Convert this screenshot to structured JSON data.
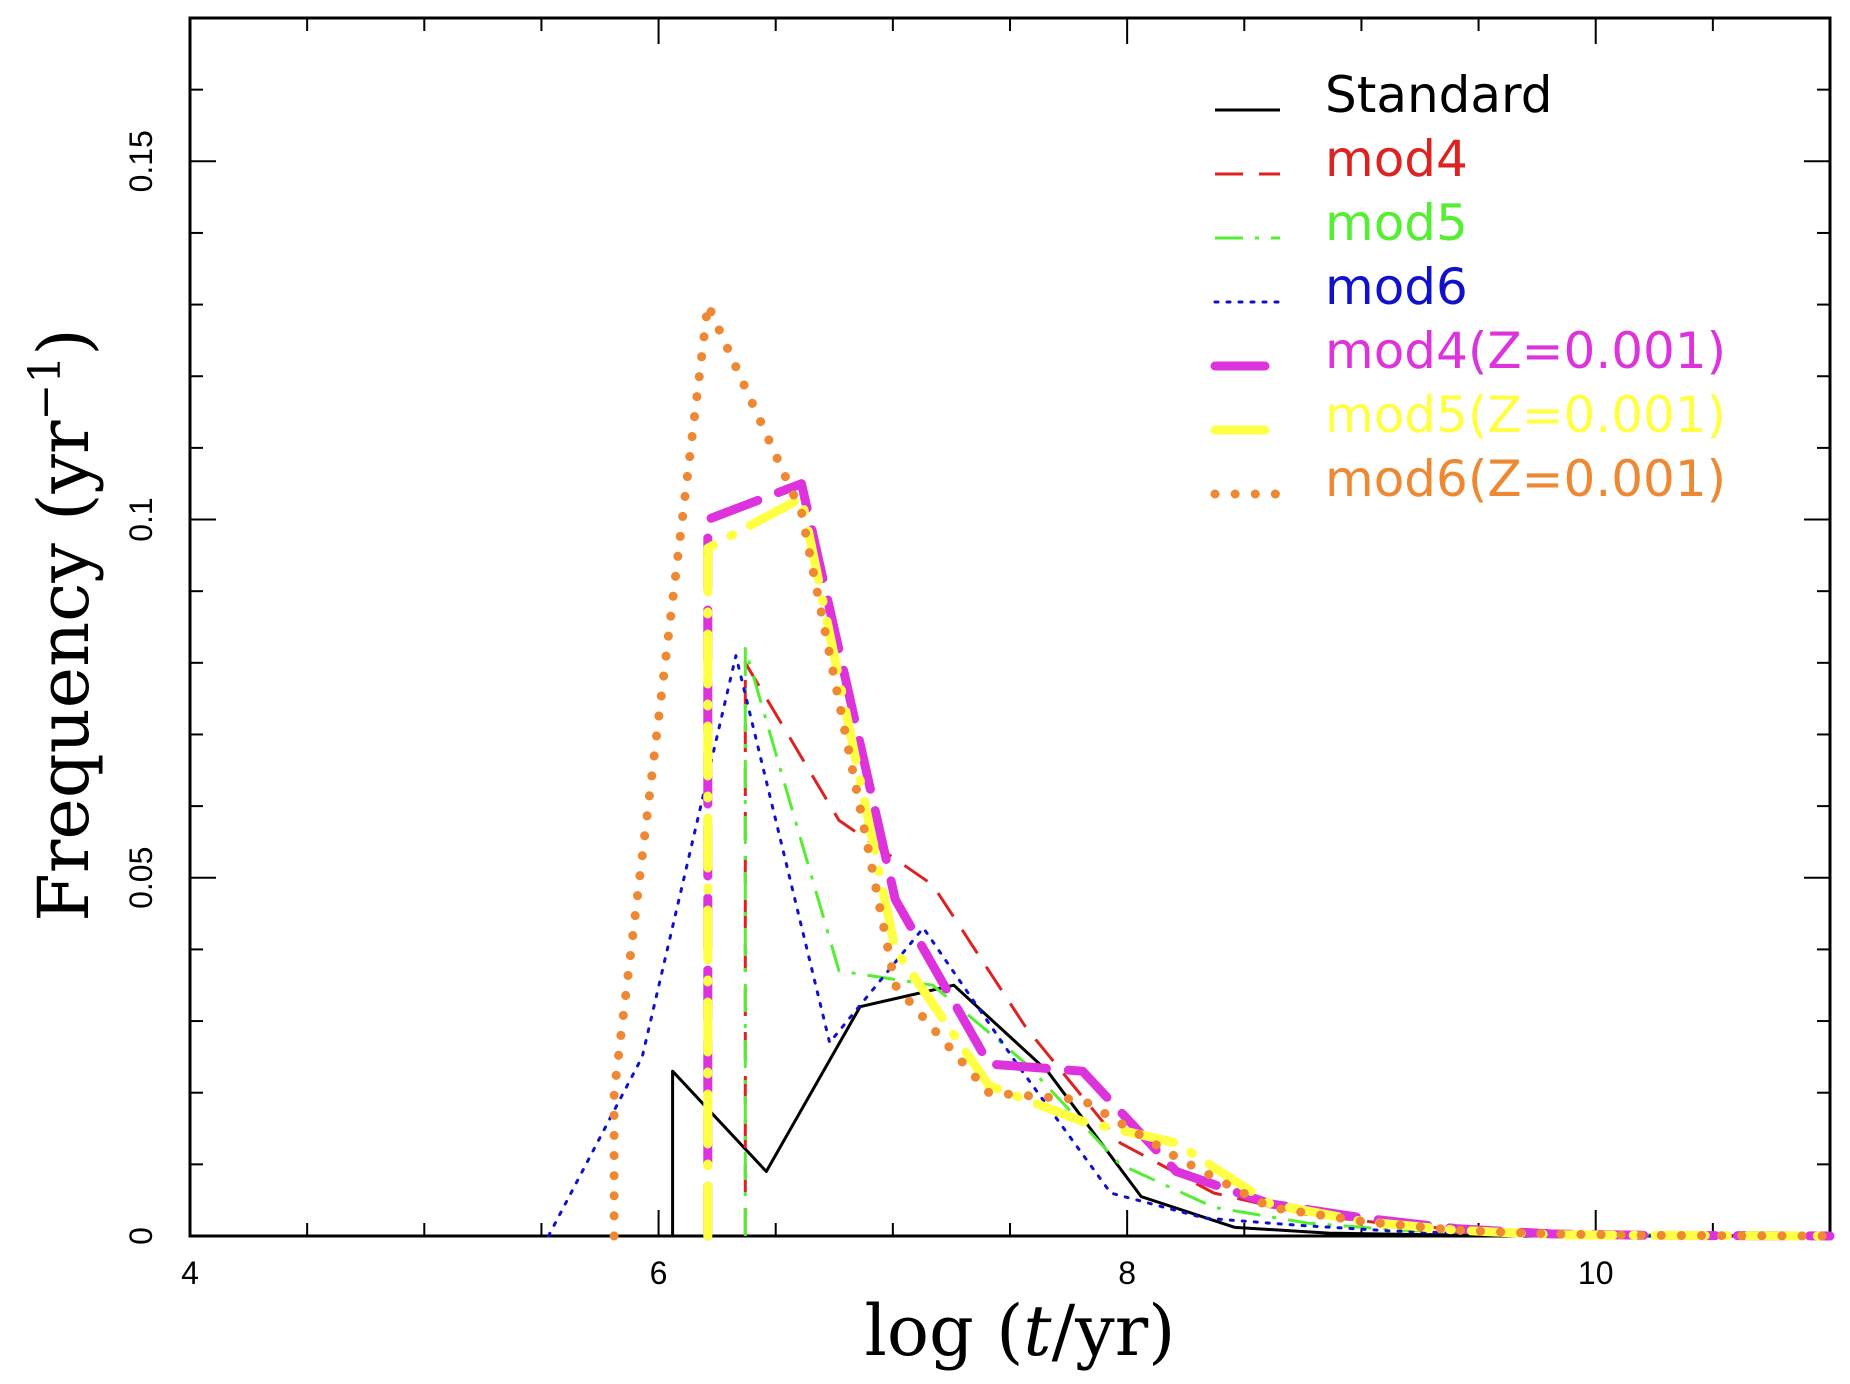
{
  "chart_data": {
    "type": "line",
    "title": "",
    "xlabel_main": "log (",
    "xlabel_var": "t",
    "xlabel_unit": "/yr)",
    "ylabel_main": "Frequency (yr",
    "ylabel_sup": "−1",
    "ylabel_close": ")",
    "xlim": [
      4,
      11
    ],
    "ylim": [
      0,
      0.17
    ],
    "xticks": [
      "4",
      "6",
      "8",
      "10"
    ],
    "yticks": [
      "0",
      "0.05",
      "0.1",
      "0.15"
    ],
    "legend_position": "top-right",
    "series": [
      {
        "name": "Standard",
        "color": "#000000",
        "style": "solid",
        "width": 3,
        "x": [
          6.06,
          6.06,
          6.46,
          6.86,
          7.26,
          7.66,
          8.06,
          8.46,
          8.86,
          9.26,
          9.66,
          10.06,
          10.46,
          11
        ],
        "y": [
          0,
          0.023,
          0.009,
          0.032,
          0.035,
          0.023,
          0.0055,
          0.0012,
          0.0004,
          0.0002,
          0.0001,
          0.0,
          0.0,
          0
        ]
      },
      {
        "name": "mod4",
        "color": "#dd2222",
        "style": "dashed",
        "width": 3,
        "x": [
          6.37,
          6.37,
          6.77,
          7.17,
          7.57,
          7.97,
          8.37,
          8.77,
          9.17,
          9.57,
          9.97,
          10.37,
          11
        ],
        "y": [
          0,
          0.08,
          0.058,
          0.049,
          0.029,
          0.013,
          0.006,
          0.003,
          0.0015,
          0.0006,
          0.0002,
          0.0001,
          0
        ]
      },
      {
        "name": "mod5",
        "color": "#55ee33",
        "style": "dashdot",
        "width": 3,
        "x": [
          6.37,
          6.37,
          6.77,
          7.17,
          7.57,
          7.97,
          8.37,
          8.77,
          9.17,
          9.57,
          9.97,
          10.37,
          11
        ],
        "y": [
          0,
          0.082,
          0.037,
          0.035,
          0.024,
          0.01,
          0.004,
          0.0018,
          0.0008,
          0.0004,
          0.0001,
          0.0001,
          0
        ]
      },
      {
        "name": "mod6",
        "color": "#1111cc",
        "style": "dotted",
        "width": 3,
        "x": [
          5.53,
          5.93,
          6.33,
          6.73,
          7.13,
          7.53,
          7.93,
          8.33,
          8.73,
          9.13,
          9.53,
          9.93,
          10.33,
          11
        ],
        "y": [
          0,
          0.025,
          0.081,
          0.027,
          0.043,
          0.024,
          0.006,
          0.0025,
          0.0015,
          0.0007,
          0.0003,
          0.0001,
          0.0,
          0
        ]
      },
      {
        "name": "mod4(Z=0.001)",
        "color": "#dd33dd",
        "style": "longdash",
        "width": 9,
        "x": [
          6.21,
          6.21,
          6.61,
          7.01,
          7.41,
          7.81,
          8.21,
          8.61,
          9.01,
          9.41,
          9.81,
          10.21,
          11
        ],
        "y": [
          0,
          0.1,
          0.105,
          0.047,
          0.024,
          0.023,
          0.009,
          0.0045,
          0.0025,
          0.001,
          0.0003,
          0.0001,
          0
        ]
      },
      {
        "name": "mod5(Z=0.001)",
        "color": "#ffff44",
        "style": "longdashdot",
        "width": 9,
        "x": [
          6.21,
          6.21,
          6.61,
          7.01,
          7.41,
          7.81,
          8.21,
          8.61,
          9.01,
          9.41,
          9.81,
          10.21,
          11
        ],
        "y": [
          0,
          0.096,
          0.103,
          0.04,
          0.021,
          0.016,
          0.013,
          0.0045,
          0.002,
          0.0008,
          0.0002,
          0.0001,
          0
        ]
      },
      {
        "name": "mod6(Z=0.001)",
        "color": "#ee8833",
        "style": "thickdot",
        "width": 9,
        "x": [
          5.81,
          5.81,
          6.21,
          6.61,
          7.01,
          7.41,
          7.81,
          8.21,
          8.61,
          9.01,
          9.41,
          9.81,
          10.21,
          11
        ],
        "y": [
          0,
          0.02,
          0.13,
          0.101,
          0.035,
          0.02,
          0.019,
          0.011,
          0.004,
          0.002,
          0.0008,
          0.0003,
          0.0001,
          0
        ]
      }
    ]
  }
}
